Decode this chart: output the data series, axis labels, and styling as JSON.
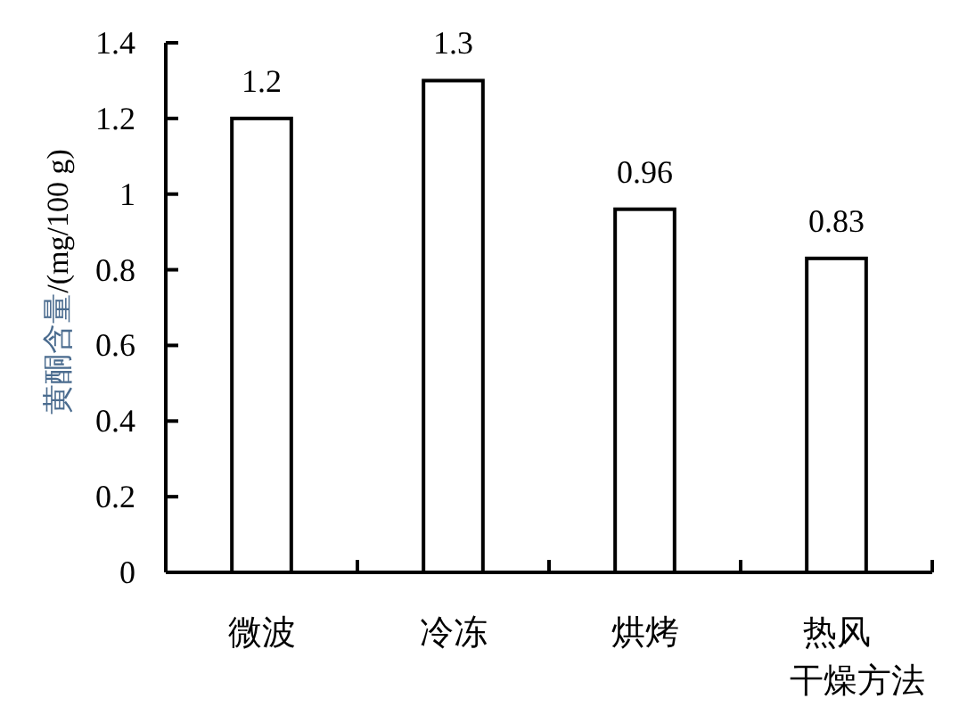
{
  "chart_data": {
    "type": "bar",
    "categories": [
      "微波",
      "冷冻",
      "烘烤",
      "热风"
    ],
    "values": [
      1.2,
      1.3,
      0.96,
      0.83
    ],
    "color": "#ffffff",
    "xlabel": "干燥方法",
    "ylabel": "黄酮含量/(mg/100 g)",
    "ylim": [
      0,
      1.4
    ],
    "yticks": [
      0,
      0.2,
      0.4,
      0.6,
      0.8,
      1,
      1.2,
      1.4
    ],
    "data_labels": true
  }
}
